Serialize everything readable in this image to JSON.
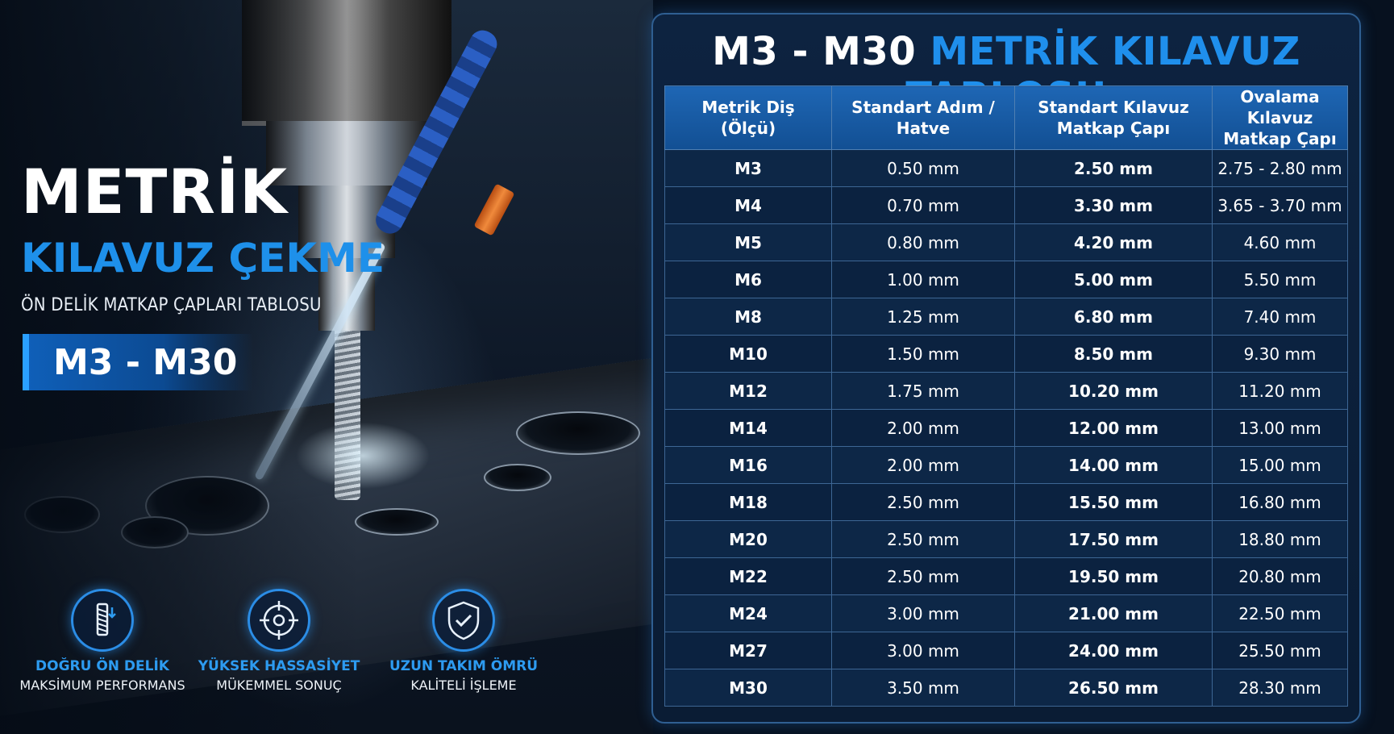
{
  "hero": {
    "title": "METRİK",
    "subtitle": "KILAVUZ ÇEKME",
    "description": "ÖN DELİK MATKAP ÇAPLARI TABLOSU",
    "range": "M3 - M30"
  },
  "features": [
    {
      "icon": "threaded-hole-icon",
      "title": "DOĞRU ÖN DELİK",
      "subtitle": "MAKSİMUM PERFORMANS"
    },
    {
      "icon": "target-icon",
      "title": "YÜKSEK HASSASİYET",
      "subtitle": "MÜKEMMEL SONUÇ"
    },
    {
      "icon": "shield-check-icon",
      "title": "UZUN TAKIM ÖMRÜ",
      "subtitle": "KALİTELİ İŞLEME"
    }
  ],
  "panel": {
    "title_part1": "M3 - M30",
    "title_part2": "METRİK KILAVUZ TABLOSU"
  },
  "table": {
    "headers": {
      "size_l1": "Metrik Diş",
      "size_l2": "(Ölçü)",
      "pitch_l1": "Standart Adım /",
      "pitch_l2": "Hatve",
      "std_l1": "Standart Kılavuz",
      "std_l2": "Matkap Çapı",
      "roll_l1": "Ovalama Kılavuz",
      "roll_l2": "Matkap Çapı"
    },
    "rows": [
      {
        "size": "M3",
        "pitch": "0.50 mm",
        "standard": "2.50 mm",
        "rolling": "2.75 - 2.80 mm"
      },
      {
        "size": "M4",
        "pitch": "0.70 mm",
        "standard": "3.30 mm",
        "rolling": "3.65 - 3.70 mm"
      },
      {
        "size": "M5",
        "pitch": "0.80 mm",
        "standard": "4.20 mm",
        "rolling": "4.60 mm"
      },
      {
        "size": "M6",
        "pitch": "1.00 mm",
        "standard": "5.00 mm",
        "rolling": "5.50 mm"
      },
      {
        "size": "M8",
        "pitch": "1.25 mm",
        "standard": "6.80 mm",
        "rolling": "7.40 mm"
      },
      {
        "size": "M10",
        "pitch": "1.50 mm",
        "standard": "8.50 mm",
        "rolling": "9.30 mm"
      },
      {
        "size": "M12",
        "pitch": "1.75 mm",
        "standard": "10.20 mm",
        "rolling": "11.20 mm"
      },
      {
        "size": "M14",
        "pitch": "2.00 mm",
        "standard": "12.00 mm",
        "rolling": "13.00 mm"
      },
      {
        "size": "M16",
        "pitch": "2.00 mm",
        "standard": "14.00 mm",
        "rolling": "15.00 mm"
      },
      {
        "size": "M18",
        "pitch": "2.50 mm",
        "standard": "15.50 mm",
        "rolling": "16.80 mm"
      },
      {
        "size": "M20",
        "pitch": "2.50 mm",
        "standard": "17.50 mm",
        "rolling": "18.80 mm"
      },
      {
        "size": "M22",
        "pitch": "2.50 mm",
        "standard": "19.50 mm",
        "rolling": "20.80 mm"
      },
      {
        "size": "M24",
        "pitch": "3.00 mm",
        "standard": "21.00 mm",
        "rolling": "22.50 mm"
      },
      {
        "size": "M27",
        "pitch": "3.00 mm",
        "standard": "24.00 mm",
        "rolling": "25.50 mm"
      },
      {
        "size": "M30",
        "pitch": "3.50 mm",
        "standard": "26.50 mm",
        "rolling": "28.30 mm"
      }
    ]
  },
  "colors": {
    "accent_blue": "#1f8fec",
    "panel_bg": "#0d2340",
    "header_bg": "#1e66b4"
  }
}
